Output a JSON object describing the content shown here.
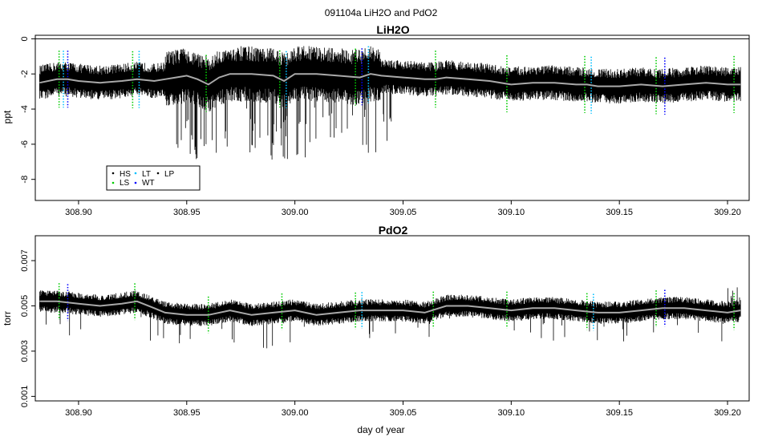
{
  "figure": {
    "title": "091104a   LiH2O and PdO2",
    "xlabel": "day of year"
  },
  "colors": {
    "trace": "#000000",
    "smooth": "#a9a9a9",
    "HS": "#000000",
    "LS": "#00cc00",
    "LT": "#00bfff",
    "WT": "#0000ff",
    "LP": "#000000",
    "reference_line": "#000000"
  },
  "chart_data": [
    {
      "type": "line",
      "title": "LiH2O",
      "xlabel": "",
      "ylabel": "ppt",
      "xlim": [
        308.88,
        309.21
      ],
      "ylim": [
        -9.2,
        0.2
      ],
      "xticks": [
        308.9,
        308.95,
        309.0,
        309.05,
        309.1,
        309.15,
        309.2
      ],
      "xtick_labels": [
        "308.90",
        "308.95",
        "309.00",
        "309.05",
        "309.10",
        "309.15",
        "309.20"
      ],
      "yticks": [
        0,
        -2,
        -4,
        -6,
        -8
      ],
      "ytick_labels": [
        "0",
        "-2",
        "-4",
        "-6",
        "-8"
      ],
      "reference_line_y": 0,
      "legend": {
        "placement": "bottom-left",
        "entries": [
          {
            "label": "HS",
            "color": "#000000"
          },
          {
            "label": "LS",
            "color": "#00cc00"
          },
          {
            "label": "LT",
            "color": "#00bfff"
          },
          {
            "label": "WT",
            "color": "#0000ff"
          },
          {
            "label": "LP",
            "color": "#000000"
          }
        ]
      },
      "series": [
        {
          "x": [
            308.882,
            308.89,
            308.895,
            308.9,
            308.91,
            308.92,
            308.927,
            308.935,
            308.94,
            308.945,
            308.95,
            308.955,
            308.96,
            308.965,
            308.97,
            308.98,
            308.99,
            308.995,
            309.0,
            309.01,
            309.02,
            309.03,
            309.035,
            309.04,
            309.05,
            309.06,
            309.065,
            309.07,
            309.08,
            309.09,
            309.1,
            309.11,
            309.12,
            309.13,
            309.135,
            309.14,
            309.15,
            309.16,
            309.17,
            309.18,
            309.19,
            309.2,
            309.206
          ],
          "values": [
            -2.5,
            -2.3,
            -2.3,
            -2.4,
            -2.5,
            -2.4,
            -2.3,
            -2.4,
            -2.3,
            -2.2,
            -2.1,
            -2.3,
            -2.6,
            -2.2,
            -2.0,
            -2.0,
            -2.1,
            -2.4,
            -2.0,
            -2.0,
            -2.1,
            -2.2,
            -2.0,
            -2.1,
            -2.2,
            -2.3,
            -2.3,
            -2.2,
            -2.3,
            -2.4,
            -2.6,
            -2.5,
            -2.5,
            -2.6,
            -2.6,
            -2.7,
            -2.7,
            -2.6,
            -2.7,
            -2.6,
            -2.5,
            -2.6,
            -2.6
          ]
        }
      ],
      "segment_markers": [
        {
          "x": 308.891,
          "class": "LS"
        },
        {
          "x": 308.893,
          "class": "LT"
        },
        {
          "x": 308.895,
          "class": "WT"
        },
        {
          "x": 308.925,
          "class": "LS"
        },
        {
          "x": 308.928,
          "class": "LT"
        },
        {
          "x": 308.959,
          "class": "LS"
        },
        {
          "x": 308.993,
          "class": "LS"
        },
        {
          "x": 308.996,
          "class": "LT"
        },
        {
          "x": 309.028,
          "class": "LS"
        },
        {
          "x": 309.031,
          "class": "WT"
        },
        {
          "x": 309.034,
          "class": "LT"
        },
        {
          "x": 309.065,
          "class": "LS"
        },
        {
          "x": 309.098,
          "class": "LS"
        },
        {
          "x": 309.134,
          "class": "LS"
        },
        {
          "x": 309.137,
          "class": "LT"
        },
        {
          "x": 309.167,
          "class": "LS"
        },
        {
          "x": 309.171,
          "class": "WT"
        },
        {
          "x": 309.203,
          "class": "LS"
        }
      ]
    },
    {
      "type": "line",
      "title": "PdO2",
      "xlabel": "day of year",
      "ylabel": "torr",
      "xlim": [
        308.88,
        309.21
      ],
      "ylim": [
        0.0008,
        0.0081
      ],
      "xticks": [
        308.9,
        308.95,
        309.0,
        309.05,
        309.1,
        309.15,
        309.2
      ],
      "xtick_labels": [
        "308.90",
        "308.95",
        "309.00",
        "309.05",
        "309.10",
        "309.15",
        "309.20"
      ],
      "yticks": [
        0.001,
        0.003,
        0.005,
        0.007
      ],
      "ytick_labels": [
        "0.001",
        "0.003",
        "0.005",
        "0.007"
      ],
      "series": [
        {
          "x": [
            308.882,
            308.89,
            308.9,
            308.91,
            308.92,
            308.927,
            308.935,
            308.94,
            308.95,
            308.96,
            308.97,
            308.98,
            308.99,
            309.0,
            309.01,
            309.02,
            309.03,
            309.04,
            309.05,
            309.06,
            309.07,
            309.08,
            309.09,
            309.1,
            309.11,
            309.12,
            309.13,
            309.14,
            309.15,
            309.16,
            309.17,
            309.18,
            309.19,
            309.2,
            309.206
          ],
          "values": [
            0.0052,
            0.0052,
            0.0051,
            0.005,
            0.0051,
            0.0052,
            0.0049,
            0.0047,
            0.0046,
            0.0046,
            0.0048,
            0.0046,
            0.0047,
            0.0048,
            0.0046,
            0.0047,
            0.0048,
            0.0048,
            0.0048,
            0.0047,
            0.005,
            0.005,
            0.0049,
            0.0048,
            0.0049,
            0.0049,
            0.0048,
            0.0047,
            0.0047,
            0.0048,
            0.0049,
            0.0049,
            0.0048,
            0.0047,
            0.0048
          ]
        }
      ],
      "segment_markers": [
        {
          "x": 308.891,
          "class": "LS"
        },
        {
          "x": 308.895,
          "class": "WT"
        },
        {
          "x": 308.926,
          "class": "LS"
        },
        {
          "x": 308.96,
          "class": "LS"
        },
        {
          "x": 308.994,
          "class": "LS"
        },
        {
          "x": 309.028,
          "class": "LS"
        },
        {
          "x": 309.031,
          "class": "LT"
        },
        {
          "x": 309.064,
          "class": "LS"
        },
        {
          "x": 309.098,
          "class": "LS"
        },
        {
          "x": 309.135,
          "class": "LS"
        },
        {
          "x": 309.138,
          "class": "LT"
        },
        {
          "x": 309.167,
          "class": "LS"
        },
        {
          "x": 309.171,
          "class": "WT"
        },
        {
          "x": 309.203,
          "class": "LS"
        }
      ]
    }
  ]
}
